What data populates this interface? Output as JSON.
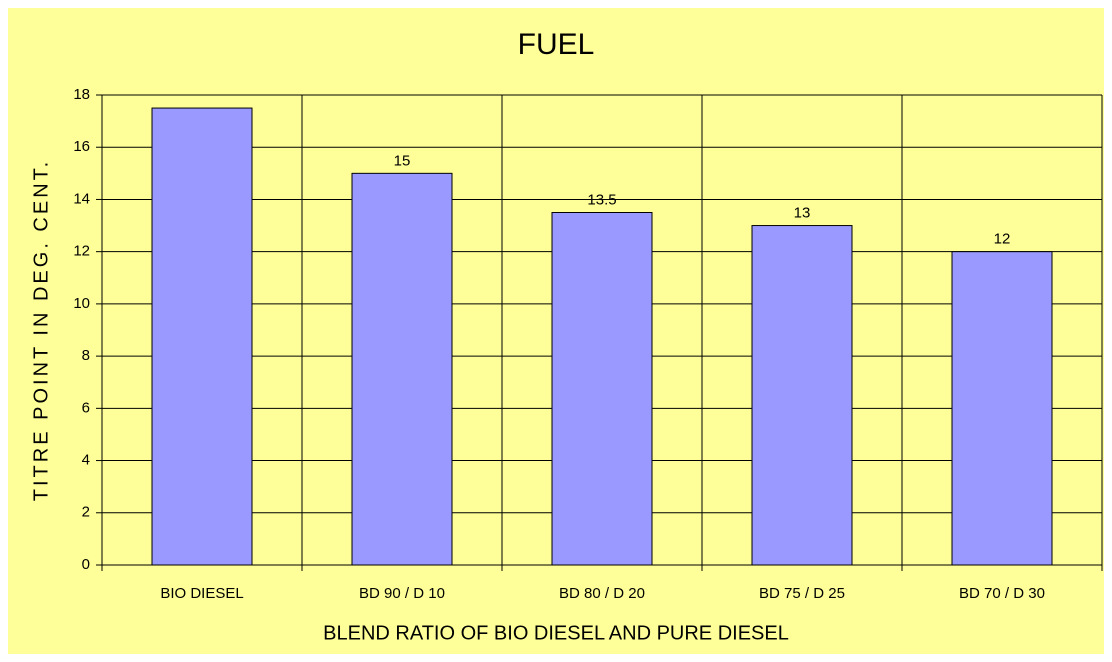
{
  "chart_data": {
    "type": "bar",
    "title": "FUEL",
    "x_label": "BLEND RATIO OF BIO DIESEL AND PURE DIESEL",
    "y_label": "TITRE POINT IN DEG. CENT.",
    "categories": [
      "BIO DIESEL",
      "BD 90 / D 10",
      "BD 80 / D 20",
      "BD 75 / D 25",
      "BD 70 / D 30"
    ],
    "values": [
      17.5,
      15,
      13.5,
      13,
      12
    ],
    "value_labels": [
      null,
      "15",
      "13.5",
      "13",
      "12"
    ],
    "color": "#9999ff",
    "ylim": [
      0,
      18
    ],
    "yticks": [
      0,
      2,
      4,
      6,
      8,
      10,
      12,
      14,
      16,
      18
    ],
    "grid": true
  }
}
